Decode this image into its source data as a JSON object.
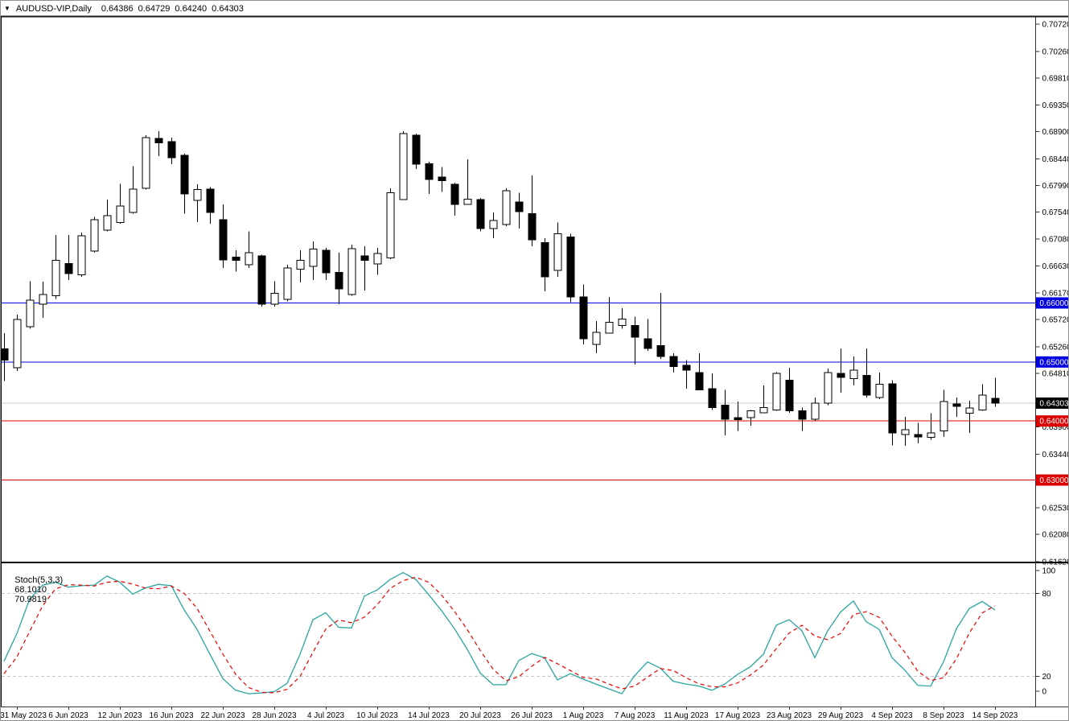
{
  "title": {
    "symbol_period": "AUDUSD-VIP,Daily",
    "open": "0.64386",
    "high": "0.64729",
    "low": "0.64240",
    "close": "0.64303"
  },
  "colors": {
    "background": "#FFFFFF",
    "bull_body": "#FFFFFF",
    "bear_body": "#000000",
    "candle_outline": "#000000",
    "level_blue": "#0000E0",
    "level_red": "#DC0000",
    "current_price_line": "#C8C8C8",
    "current_price_badge": "#000000",
    "badge_text": "#FFFFFF",
    "stoch_k": "#2AA5A0",
    "stoch_d": "#EE0000",
    "stoch_grid": "#C8C8C8",
    "axis_line": "#333333",
    "text": "#000000",
    "divider": "#000000"
  },
  "price_axis": {
    "labels": [
      "0.70720",
      "0.70260",
      "0.69810",
      "0.69350",
      "0.68900",
      "0.68440",
      "0.67990",
      "0.67540",
      "0.67080",
      "0.66630",
      "0.66170",
      "0.65720",
      "0.65260",
      "0.64810",
      "0.64350",
      "0.63900",
      "0.63440",
      "0.62990",
      "0.62530",
      "0.62080",
      "0.61620"
    ],
    "levels": [
      {
        "value": 0.66,
        "label": "0.66000",
        "color": "#0000E0",
        "kind": "support-resistance"
      },
      {
        "value": 0.65,
        "label": "0.65000",
        "color": "#0000E0",
        "kind": "support-resistance"
      },
      {
        "value": 0.64303,
        "label": "0.64303",
        "color": "#000000",
        "line_color": "#C8C8C8",
        "kind": "current-price"
      },
      {
        "value": 0.64,
        "label": "0.64000",
        "color": "#DC0000",
        "kind": "support-resistance"
      },
      {
        "value": 0.63,
        "label": "0.63000",
        "color": "#DC0000",
        "kind": "support-resistance"
      }
    ]
  },
  "time_axis": {
    "labels": [
      "31 May 2023",
      "6 Jun 2023",
      "12 Jun 2023",
      "16 Jun 2023",
      "22 Jun 2023",
      "28 Jun 2023",
      "4 Jul 2023",
      "10 Jul 2023",
      "14 Jul 2023",
      "20 Jul 2023",
      "26 Jul 2023",
      "1 Aug 2023",
      "7 Aug 2023",
      "11 Aug 2023",
      "17 Aug 2023",
      "23 Aug 2023",
      "29 Aug 2023",
      "4 Sep 2023",
      "8 Sep 2023",
      "14 Sep 2023"
    ],
    "first_candle_index": 1,
    "candle_step": 4
  },
  "stoch_axis": {
    "labels": [
      {
        "value": 100,
        "text": "100"
      },
      {
        "value": 80,
        "text": "80"
      },
      {
        "value": 20,
        "text": "20"
      },
      {
        "value": 0,
        "text": "0"
      }
    ]
  },
  "chart_data": {
    "type": "candlestick",
    "symbol": "AUDUSD-VIP",
    "timeframe": "Daily",
    "y_axis": {
      "min": 0.61617,
      "max": 0.70846
    },
    "ohlc": [
      [
        0.6522,
        0.6549,
        0.6468,
        0.6503
      ],
      [
        0.649,
        0.658,
        0.6485,
        0.6572
      ],
      [
        0.656,
        0.6637,
        0.6556,
        0.6605
      ],
      [
        0.6598,
        0.6636,
        0.6575,
        0.6614
      ],
      [
        0.6612,
        0.6715,
        0.6607,
        0.6672
      ],
      [
        0.6667,
        0.6715,
        0.6639,
        0.665
      ],
      [
        0.6648,
        0.6719,
        0.6644,
        0.6714
      ],
      [
        0.6688,
        0.6746,
        0.6685,
        0.6741
      ],
      [
        0.6723,
        0.6775,
        0.6721,
        0.6748
      ],
      [
        0.6736,
        0.6802,
        0.6734,
        0.6764
      ],
      [
        0.6753,
        0.6832,
        0.6751,
        0.6793
      ],
      [
        0.6794,
        0.6884,
        0.6792,
        0.688
      ],
      [
        0.6879,
        0.6891,
        0.6849,
        0.6871
      ],
      [
        0.6873,
        0.688,
        0.6835,
        0.6846
      ],
      [
        0.685,
        0.6853,
        0.6751,
        0.6785
      ],
      [
        0.6774,
        0.6801,
        0.6737,
        0.6792
      ],
      [
        0.6793,
        0.6796,
        0.6734,
        0.6753
      ],
      [
        0.6741,
        0.6767,
        0.6659,
        0.6673
      ],
      [
        0.6678,
        0.6689,
        0.6653,
        0.6672
      ],
      [
        0.6665,
        0.6721,
        0.6659,
        0.6685
      ],
      [
        0.668,
        0.6682,
        0.6594,
        0.6598
      ],
      [
        0.6598,
        0.6637,
        0.6594,
        0.6616
      ],
      [
        0.6606,
        0.6665,
        0.6603,
        0.6659
      ],
      [
        0.6657,
        0.6689,
        0.6635,
        0.6672
      ],
      [
        0.6662,
        0.6704,
        0.6639,
        0.6691
      ],
      [
        0.6689,
        0.6693,
        0.6639,
        0.6651
      ],
      [
        0.6652,
        0.6685,
        0.6598,
        0.6624
      ],
      [
        0.6614,
        0.6699,
        0.6612,
        0.6692
      ],
      [
        0.668,
        0.6696,
        0.6621,
        0.6672
      ],
      [
        0.6666,
        0.6693,
        0.6648,
        0.6684
      ],
      [
        0.6676,
        0.6794,
        0.6674,
        0.6787
      ],
      [
        0.6775,
        0.6891,
        0.6775,
        0.6887
      ],
      [
        0.6884,
        0.6887,
        0.6827,
        0.6835
      ],
      [
        0.6836,
        0.6839,
        0.6785,
        0.6809
      ],
      [
        0.6813,
        0.683,
        0.6788,
        0.6807
      ],
      [
        0.6801,
        0.6804,
        0.6748,
        0.6767
      ],
      [
        0.6767,
        0.6843,
        0.6766,
        0.6776
      ],
      [
        0.6775,
        0.6778,
        0.6721,
        0.6726
      ],
      [
        0.6726,
        0.6753,
        0.671,
        0.674
      ],
      [
        0.6733,
        0.6794,
        0.673,
        0.679
      ],
      [
        0.6771,
        0.6787,
        0.6726,
        0.6755
      ],
      [
        0.6751,
        0.6816,
        0.6696,
        0.6707
      ],
      [
        0.6702,
        0.671,
        0.662,
        0.6644
      ],
      [
        0.6655,
        0.6736,
        0.6644,
        0.6717
      ],
      [
        0.6712,
        0.6717,
        0.6601,
        0.661
      ],
      [
        0.661,
        0.6631,
        0.653,
        0.6539
      ],
      [
        0.653,
        0.6569,
        0.6515,
        0.655
      ],
      [
        0.6549,
        0.661,
        0.6549,
        0.6567
      ],
      [
        0.6562,
        0.6591,
        0.6556,
        0.6573
      ],
      [
        0.6562,
        0.6577,
        0.6496,
        0.6542
      ],
      [
        0.6539,
        0.6573,
        0.6519,
        0.6523
      ],
      [
        0.6528,
        0.6617,
        0.6505,
        0.6509
      ],
      [
        0.6509,
        0.6515,
        0.6482,
        0.6492
      ],
      [
        0.6494,
        0.6503,
        0.6455,
        0.6486
      ],
      [
        0.6482,
        0.6515,
        0.6453,
        0.6453
      ],
      [
        0.6455,
        0.6481,
        0.6419,
        0.6423
      ],
      [
        0.6427,
        0.6453,
        0.6376,
        0.6403
      ],
      [
        0.6406,
        0.6433,
        0.6383,
        0.6402
      ],
      [
        0.6406,
        0.6419,
        0.6392,
        0.6417
      ],
      [
        0.6414,
        0.646,
        0.6413,
        0.6423
      ],
      [
        0.6419,
        0.6483,
        0.6417,
        0.6481
      ],
      [
        0.6469,
        0.649,
        0.6414,
        0.6417
      ],
      [
        0.6417,
        0.6423,
        0.6383,
        0.6403
      ],
      [
        0.6403,
        0.644,
        0.64,
        0.643
      ],
      [
        0.643,
        0.6489,
        0.6427,
        0.6482
      ],
      [
        0.6481,
        0.6523,
        0.6448,
        0.6474
      ],
      [
        0.6472,
        0.6509,
        0.646,
        0.6486
      ],
      [
        0.6477,
        0.6523,
        0.644,
        0.6444
      ],
      [
        0.644,
        0.6482,
        0.6437,
        0.6462
      ],
      [
        0.6463,
        0.6469,
        0.6359,
        0.638
      ],
      [
        0.6377,
        0.6407,
        0.6358,
        0.6385
      ],
      [
        0.6377,
        0.6397,
        0.6362,
        0.6373
      ],
      [
        0.6372,
        0.6413,
        0.6368,
        0.638
      ],
      [
        0.6383,
        0.6453,
        0.6373,
        0.6433
      ],
      [
        0.6429,
        0.644,
        0.6407,
        0.6425
      ],
      [
        0.6413,
        0.6434,
        0.638,
        0.6422
      ],
      [
        0.6419,
        0.6462,
        0.6417,
        0.6444
      ],
      [
        0.64386,
        0.64729,
        0.6424,
        0.64303
      ]
    ],
    "stochastic": {
      "label": "Stoch(5,3,3)",
      "k_value": "68.1010",
      "d_value": "70.9819",
      "upper_level": 80,
      "lower_level": 20,
      "range": [
        0,
        100
      ],
      "k": [
        31,
        51,
        76,
        86,
        88,
        84.5,
        85.5,
        86,
        92.5,
        88,
        79.5,
        84,
        86.5,
        85.5,
        68,
        54,
        36,
        18.5,
        10,
        7.5,
        8,
        9,
        15,
        36,
        61,
        66,
        55.5,
        55,
        78,
        82.5,
        90,
        95,
        90,
        79,
        67.5,
        54.5,
        39.5,
        22.5,
        14,
        14,
        31.5,
        36.5,
        33.5,
        17.5,
        22,
        18,
        14.5,
        11,
        7.5,
        20.5,
        30.5,
        26,
        16.5,
        14.5,
        13,
        10,
        14.5,
        21.5,
        27,
        36,
        57,
        61,
        53,
        33.5,
        53,
        66.5,
        74.5,
        59.5,
        54,
        33.5,
        24.5,
        13.5,
        13,
        30.5,
        54.5,
        69,
        74.2,
        68.1
      ],
      "d": [
        22,
        34,
        52.7,
        71,
        83.3,
        86.2,
        86,
        85.3,
        88,
        88.8,
        86.7,
        83.8,
        83.3,
        85.3,
        80,
        69.2,
        52.7,
        36.2,
        21.5,
        12,
        8.5,
        8.2,
        10.7,
        20,
        37.3,
        54.3,
        60.8,
        58.8,
        62.8,
        71.8,
        83.5,
        89.2,
        91.7,
        88,
        78.8,
        67,
        53.8,
        38.8,
        25.3,
        16.8,
        19.8,
        27.3,
        33.8,
        29.2,
        24.3,
        19.2,
        18.2,
        14.5,
        11,
        13,
        19.5,
        25.7,
        24.3,
        19,
        14.7,
        12.5,
        12.5,
        15.3,
        21,
        28.2,
        40,
        51.3,
        57,
        49.2,
        46.5,
        51,
        64.7,
        66.8,
        62.7,
        49,
        37.3,
        23.8,
        17,
        19,
        32.7,
        51.3,
        65.9,
        70.98
      ]
    }
  }
}
